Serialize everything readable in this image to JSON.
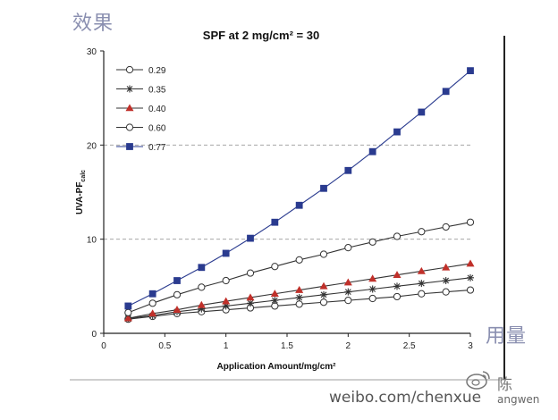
{
  "annotations": {
    "top_left": "效果",
    "bottom_right": "用量"
  },
  "watermark": {
    "url": "weibo.com/chenxue",
    "tail": "angwen",
    "user_fragment": "陈"
  },
  "colors": {
    "axis": "#222222",
    "grid": "#9a9a9a",
    "series_077": "#2a3b8f",
    "series_040": "#c0302a",
    "series_035": "#333333",
    "series_dark": "#333333",
    "annotation": "#8a8fb0"
  },
  "chart_data": {
    "type": "line",
    "title": "SPF at 2 mg/cm² = 30",
    "xlabel": "Application Amount/mg/cm²",
    "ylabel": "UVA-PF",
    "ylabel_sub": "calc",
    "xlim": [
      0,
      3
    ],
    "ylim": [
      0,
      30
    ],
    "xticks": [
      "0",
      "0.5",
      "1",
      "1.5",
      "2",
      "2.5",
      "3"
    ],
    "yticks": [
      "0",
      "10",
      "20",
      "30"
    ],
    "grid": "horizontal dashed at 10, 20",
    "legend_position": "top-left",
    "x": [
      0.2,
      0.4,
      0.6,
      0.8,
      1.0,
      1.2,
      1.4,
      1.6,
      1.8,
      2.0,
      2.2,
      2.4,
      2.6,
      2.8,
      3.0
    ],
    "series": [
      {
        "name": "0.29",
        "marker": "open-circle",
        "values": [
          1.5,
          1.8,
          2.1,
          2.3,
          2.5,
          2.7,
          2.9,
          3.1,
          3.3,
          3.5,
          3.7,
          3.9,
          4.2,
          4.4,
          4.6
        ]
      },
      {
        "name": "0.35",
        "marker": "star",
        "values": [
          1.6,
          1.9,
          2.3,
          2.6,
          2.9,
          3.2,
          3.5,
          3.8,
          4.1,
          4.4,
          4.7,
          5.0,
          5.3,
          5.6,
          5.9
        ]
      },
      {
        "name": "0.40",
        "marker": "filled-triangle",
        "values": [
          1.6,
          2.1,
          2.5,
          3.0,
          3.4,
          3.8,
          4.2,
          4.6,
          5.0,
          5.4,
          5.8,
          6.2,
          6.6,
          7.0,
          7.4
        ]
      },
      {
        "name": "0.60",
        "marker": "open-circle",
        "values": [
          2.2,
          3.2,
          4.1,
          4.9,
          5.6,
          6.4,
          7.1,
          7.8,
          8.4,
          9.1,
          9.7,
          10.3,
          10.8,
          11.3,
          11.8
        ]
      },
      {
        "name": "0.77",
        "marker": "filled-square",
        "values": [
          2.9,
          4.2,
          5.6,
          7.0,
          8.5,
          10.1,
          11.8,
          13.6,
          15.4,
          17.3,
          19.3,
          21.4,
          23.5,
          25.7,
          27.9
        ]
      }
    ]
  }
}
